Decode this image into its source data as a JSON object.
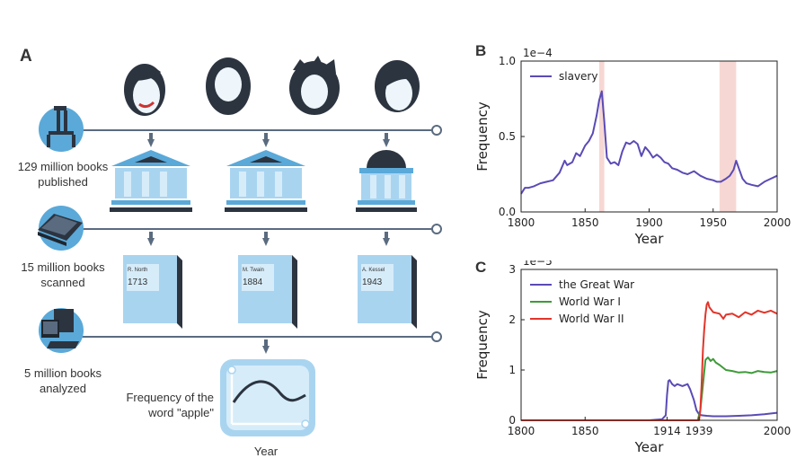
{
  "panels": {
    "a_label": "A",
    "b_label": "B",
    "c_label": "C"
  },
  "diagram": {
    "stage1_text": [
      "129 million books",
      "published"
    ],
    "stage2_text": [
      "15 million books",
      "scanned"
    ],
    "stage3_text": [
      "5 million books",
      "analyzed"
    ],
    "books": [
      {
        "author": "R. North",
        "year": "1713"
      },
      {
        "author": "M. Twain",
        "year": "1884"
      },
      {
        "author": "A. Kessel",
        "year": "1943"
      }
    ],
    "freq_text": [
      "Frequency of the",
      "word \"apple\""
    ],
    "year_text": "Year",
    "colors": {
      "line": "#5a6b80",
      "accent": "#5aa9d9",
      "light": "#a9d4f0",
      "dark": "#2c3440"
    }
  },
  "chart_data": [
    {
      "type": "line",
      "panel": "B",
      "title": "",
      "xlabel": "Year",
      "ylabel": "Frequency",
      "scale_label": "1e−4",
      "xlim": [
        1800,
        2000
      ],
      "ylim": [
        0,
        1.0
      ],
      "xticks": [
        1800,
        1850,
        1900,
        1950,
        2000
      ],
      "yticks": [
        0.0,
        0.5,
        1.0
      ],
      "ytick_labels": [
        "0.0",
        "0.5",
        "1.0"
      ],
      "legend": "top-left",
      "highlight_bands": [
        [
          1861,
          1865
        ],
        [
          1955,
          1968
        ]
      ],
      "highlight_color": "#f4c9c4",
      "series": [
        {
          "name": "slavery",
          "color": "#5a4bb5",
          "x": [
            1800,
            1803,
            1806,
            1810,
            1815,
            1820,
            1825,
            1830,
            1834,
            1836,
            1840,
            1843,
            1846,
            1850,
            1853,
            1856,
            1859,
            1861,
            1863,
            1865,
            1867,
            1870,
            1873,
            1876,
            1879,
            1882,
            1885,
            1888,
            1891,
            1894,
            1897,
            1900,
            1903,
            1906,
            1909,
            1912,
            1915,
            1918,
            1922,
            1926,
            1930,
            1935,
            1940,
            1945,
            1950,
            1953,
            1956,
            1960,
            1963,
            1966,
            1968,
            1970,
            1973,
            1976,
            1980,
            1985,
            1990,
            1995,
            2000
          ],
          "y": [
            0.12,
            0.16,
            0.16,
            0.17,
            0.19,
            0.2,
            0.21,
            0.26,
            0.34,
            0.31,
            0.33,
            0.39,
            0.37,
            0.44,
            0.47,
            0.52,
            0.64,
            0.74,
            0.8,
            0.6,
            0.36,
            0.32,
            0.33,
            0.31,
            0.4,
            0.46,
            0.45,
            0.47,
            0.45,
            0.37,
            0.43,
            0.4,
            0.36,
            0.38,
            0.36,
            0.33,
            0.32,
            0.29,
            0.28,
            0.26,
            0.25,
            0.27,
            0.24,
            0.22,
            0.21,
            0.2,
            0.2,
            0.22,
            0.24,
            0.28,
            0.34,
            0.29,
            0.22,
            0.19,
            0.18,
            0.17,
            0.2,
            0.22,
            0.24
          ]
        }
      ]
    },
    {
      "type": "line",
      "panel": "C",
      "title": "",
      "xlabel": "Year",
      "ylabel": "Frequency",
      "scale_label": "1e−5",
      "xlim": [
        1800,
        2000
      ],
      "ylim": [
        0,
        3
      ],
      "xticks": [
        1800,
        1850,
        1914,
        1939,
        2000
      ],
      "yticks": [
        0,
        1,
        2,
        3
      ],
      "ytick_labels": [
        "0",
        "1",
        "2",
        "3"
      ],
      "legend": "top-left",
      "series": [
        {
          "name": "the Great War",
          "color": "#5a4bb5",
          "x": [
            1800,
            1900,
            1910,
            1913,
            1914,
            1915,
            1916,
            1918,
            1920,
            1922,
            1924,
            1926,
            1928,
            1930,
            1932,
            1935,
            1937,
            1939,
            1941,
            1945,
            1950,
            1960,
            1970,
            1980,
            1990,
            2000
          ],
          "y": [
            0,
            0,
            0.02,
            0.1,
            0.5,
            0.78,
            0.8,
            0.72,
            0.68,
            0.72,
            0.7,
            0.68,
            0.7,
            0.72,
            0.62,
            0.4,
            0.2,
            0.12,
            0.1,
            0.09,
            0.08,
            0.08,
            0.09,
            0.1,
            0.12,
            0.15
          ]
        },
        {
          "name": "World War I",
          "color": "#3f9a3a",
          "x": [
            1800,
            1930,
            1938,
            1940,
            1942,
            1944,
            1946,
            1948,
            1950,
            1952,
            1955,
            1960,
            1965,
            1970,
            1975,
            1980,
            1985,
            1990,
            1995,
            2000
          ],
          "y": [
            0,
            0,
            0,
            0.2,
            0.7,
            1.2,
            1.25,
            1.18,
            1.22,
            1.15,
            1.1,
            1.0,
            0.98,
            0.95,
            0.96,
            0.94,
            0.98,
            0.96,
            0.95,
            0.98
          ]
        },
        {
          "name": "World War II",
          "color": "#e2352a",
          "x": [
            1800,
            1937,
            1939,
            1940,
            1941,
            1942,
            1943,
            1944,
            1945,
            1946,
            1947,
            1950,
            1955,
            1958,
            1960,
            1965,
            1970,
            1975,
            1980,
            1985,
            1990,
            1995,
            2000
          ],
          "y": [
            0,
            0,
            0,
            0.2,
            0.7,
            1.4,
            1.8,
            2.1,
            2.3,
            2.35,
            2.25,
            2.15,
            2.12,
            2.02,
            2.1,
            2.12,
            2.05,
            2.15,
            2.1,
            2.18,
            2.14,
            2.18,
            2.12
          ]
        }
      ]
    }
  ]
}
